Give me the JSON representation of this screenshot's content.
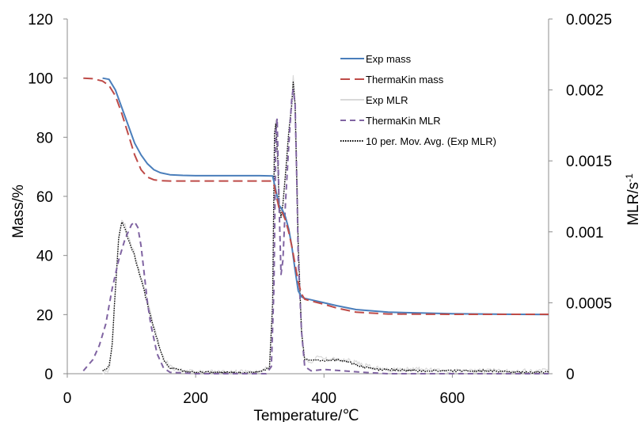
{
  "chart_data": {
    "type": "line",
    "title": "",
    "xlabel": "Temperature/℃",
    "ylabel": "Mass/%",
    "y2label_base": "MLR/s",
    "y2label_exp": "-1",
    "xlim": [
      0,
      750
    ],
    "ylim": [
      0,
      120
    ],
    "y2lim": [
      0,
      0.0025
    ],
    "x_ticks": [
      0,
      200,
      400,
      600
    ],
    "x_tick_labels": [
      "0",
      "200",
      "400",
      "600"
    ],
    "y_ticks": [
      0,
      20,
      40,
      60,
      80,
      100,
      120
    ],
    "y_tick_labels": [
      "0",
      "20",
      "40",
      "60",
      "80",
      "100",
      "120"
    ],
    "y2_ticks": [
      0,
      0.0005,
      0.001,
      0.0015,
      0.002,
      0.0025
    ],
    "y2_tick_labels": [
      "0",
      "0.0005",
      "0.001",
      "0.0015",
      "0.002",
      "0.0025"
    ],
    "grid": false,
    "legend_position": "top-right",
    "series": [
      {
        "name": "Exp mass",
        "axis": "left",
        "color": "#4a7ebb",
        "style": "solid",
        "x": [
          55,
          65,
          75,
          85,
          95,
          105,
          115,
          125,
          135,
          145,
          160,
          180,
          200,
          250,
          300,
          320,
          325,
          330,
          335,
          340,
          345,
          350,
          355,
          360,
          365,
          370,
          380,
          400,
          420,
          450,
          500,
          600,
          700,
          750
        ],
        "y": [
          100,
          99.6,
          96,
          90,
          84,
          78,
          74,
          71,
          69,
          68,
          67.3,
          67.1,
          67,
          67,
          67,
          66.9,
          62,
          57,
          55.5,
          53,
          49,
          43,
          35,
          28,
          26,
          25.5,
          25,
          24,
          23,
          21.7,
          20.8,
          20.3,
          20.1,
          20.0
        ]
      },
      {
        "name": "ThermaKin mass",
        "axis": "left",
        "color": "#be4b48",
        "style": "dashed",
        "x": [
          25,
          40,
          55,
          65,
          75,
          85,
          95,
          105,
          115,
          125,
          135,
          145,
          160,
          200,
          300,
          318,
          322,
          326,
          330,
          335,
          340,
          345,
          350,
          355,
          360,
          365,
          370,
          380,
          400,
          420,
          450,
          500,
          600,
          750
        ],
        "y": [
          100,
          99.8,
          99,
          97.5,
          94,
          88,
          81,
          74,
          69,
          66.5,
          65.6,
          65.3,
          65.2,
          65.2,
          65.2,
          65.2,
          64,
          60,
          56,
          54.5,
          52,
          48,
          43,
          37,
          31,
          27,
          25.2,
          24.6,
          23.5,
          22.2,
          20.8,
          20.2,
          20.1,
          20.1
        ]
      },
      {
        "name": "Exp MLR",
        "axis": "right",
        "color": "#d9d9d9",
        "style": "noisy",
        "x": [
          55,
          65,
          70,
          75,
          80,
          85,
          90,
          95,
          100,
          105,
          110,
          115,
          120,
          130,
          140,
          150,
          160,
          180,
          200,
          250,
          300,
          315,
          320,
          323,
          325,
          328,
          330,
          333,
          336,
          340,
          345,
          350,
          352,
          355,
          358,
          360,
          365,
          370,
          380,
          390,
          400,
          420,
          440,
          460,
          480,
          500,
          550,
          600,
          650,
          700,
          750
        ],
        "y": [
          0,
          2e-05,
          0.0002,
          0.0006,
          0.00095,
          0.00108,
          0.00105,
          0.00096,
          0.0009,
          0.00085,
          0.00075,
          0.00068,
          0.0006,
          0.00042,
          0.00025,
          0.00011,
          5e-05,
          2e-05,
          1e-05,
          1e-05,
          1e-05,
          5e-05,
          0.0005,
          0.0017,
          0.00178,
          0.0015,
          0.0012,
          0.0011,
          0.0012,
          0.0014,
          0.0017,
          0.00195,
          0.0021,
          0.0019,
          0.0013,
          0.0009,
          0.0003,
          0.0001,
          9e-05,
          0.00012,
          0.0001,
          0.0001,
          9e-05,
          6e-05,
          4e-05,
          3e-05,
          3e-05,
          2e-05,
          2e-05,
          2e-05,
          2e-05
        ]
      },
      {
        "name": "ThermaKin MLR",
        "axis": "right",
        "color": "#8064a2",
        "style": "dashed",
        "x": [
          25,
          40,
          50,
          60,
          70,
          80,
          90,
          100,
          105,
          110,
          115,
          120,
          125,
          130,
          140,
          150,
          160,
          200,
          310,
          318,
          322,
          325,
          327,
          330,
          333,
          336,
          340,
          345,
          350,
          352,
          355,
          358,
          360,
          365,
          370,
          380,
          400,
          430,
          460,
          500,
          600,
          750
        ],
        "y": [
          2e-05,
          0.0001,
          0.0002,
          0.00035,
          0.0006,
          0.0008,
          0.00095,
          0.00105,
          0.00107,
          0.00103,
          0.0009,
          0.0007,
          0.0005,
          0.00035,
          0.00014,
          4e-05,
          1e-05,
          0,
          0,
          5e-05,
          0.0006,
          0.0017,
          0.0018,
          0.0012,
          0.0007,
          0.0008,
          0.0012,
          0.0016,
          0.00195,
          0.002,
          0.0019,
          0.0013,
          0.0008,
          0.0003,
          5e-05,
          2e-05,
          3e-05,
          2e-05,
          1e-05,
          0,
          0,
          0
        ]
      },
      {
        "name": "10 per. Mov. Avg. (Exp MLR)",
        "axis": "right",
        "color": "#000000",
        "style": "dotted",
        "x": [
          55,
          65,
          70,
          75,
          80,
          85,
          90,
          95,
          100,
          105,
          110,
          115,
          120,
          130,
          140,
          150,
          160,
          180,
          200,
          250,
          300,
          315,
          320,
          323,
          325,
          328,
          330,
          333,
          336,
          340,
          345,
          350,
          352,
          355,
          358,
          360,
          365,
          370,
          380,
          390,
          400,
          420,
          440,
          460,
          480,
          500,
          550,
          600,
          650,
          700,
          750
        ],
        "y": [
          2e-05,
          5e-05,
          0.0002,
          0.0006,
          0.00095,
          0.00107,
          0.00102,
          0.00094,
          0.00089,
          0.00083,
          0.00074,
          0.00066,
          0.00058,
          0.0004,
          0.00024,
          0.0001,
          4e-05,
          2e-05,
          1e-05,
          1e-05,
          1e-05,
          4e-05,
          0.0005,
          0.0017,
          0.00177,
          0.0015,
          0.0012,
          0.0011,
          0.0012,
          0.0014,
          0.0017,
          0.0019,
          0.00205,
          0.0019,
          0.0013,
          0.0009,
          0.0003,
          0.0001,
          9e-05,
          0.0001,
          9e-05,
          0.0001,
          8e-05,
          5e-05,
          3e-05,
          3e-05,
          2e-05,
          2e-05,
          2e-05,
          1e-05,
          1e-05
        ]
      }
    ]
  }
}
